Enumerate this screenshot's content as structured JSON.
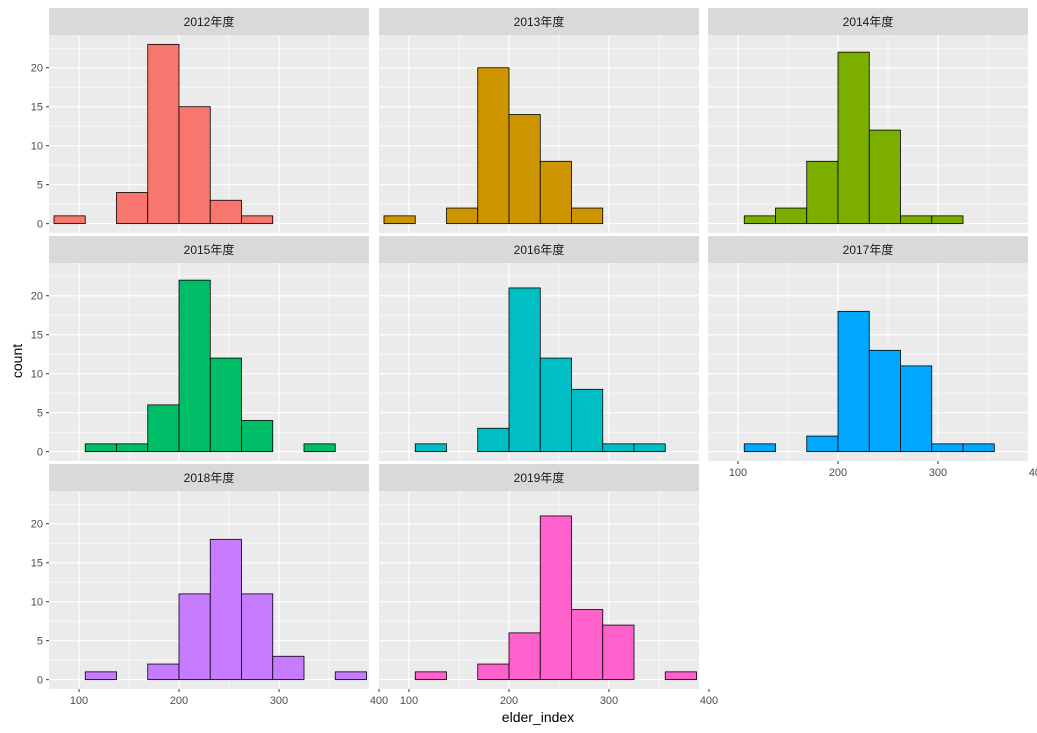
{
  "chart_data": {
    "type": "bar",
    "subtype": "faceted-histogram",
    "xlabel": "elder_index",
    "ylabel": "count",
    "xlim": [
      70,
      390
    ],
    "ylim": [
      -1.2,
      24.2
    ],
    "x_ticks": [
      100,
      200,
      300,
      400
    ],
    "y_ticks": [
      0,
      5,
      10,
      15,
      20
    ],
    "bin_edges": [
      75,
      106.25,
      137.5,
      168.75,
      200,
      231.25,
      262.5,
      293.75,
      325,
      356.25,
      387.5
    ],
    "grid": true,
    "legend": "none",
    "facets": [
      {
        "label": "2012年度",
        "color": "#F8766D",
        "counts": [
          1,
          0,
          4,
          23,
          15,
          3,
          1,
          0,
          0,
          0
        ]
      },
      {
        "label": "2013年度",
        "color": "#CD9600",
        "counts": [
          1,
          0,
          2,
          20,
          14,
          8,
          2,
          0,
          0,
          0
        ]
      },
      {
        "label": "2014年度",
        "color": "#7CAE00",
        "counts": [
          0,
          1,
          2,
          8,
          22,
          12,
          1,
          1,
          0,
          0
        ]
      },
      {
        "label": "2015年度",
        "color": "#00BE67",
        "counts": [
          0,
          1,
          1,
          6,
          22,
          12,
          4,
          0,
          1,
          0
        ]
      },
      {
        "label": "2016年度",
        "color": "#00BFC4",
        "counts": [
          0,
          1,
          0,
          3,
          21,
          12,
          8,
          1,
          1,
          0
        ]
      },
      {
        "label": "2017年度",
        "color": "#00A9FF",
        "counts": [
          0,
          1,
          0,
          2,
          18,
          13,
          11,
          1,
          1,
          0
        ]
      },
      {
        "label": "2018年度",
        "color": "#C77CFF",
        "counts": [
          0,
          1,
          0,
          2,
          11,
          18,
          11,
          3,
          0,
          1
        ]
      },
      {
        "label": "2019年度",
        "color": "#FF61CC",
        "counts": [
          0,
          1,
          0,
          2,
          6,
          21,
          9,
          7,
          0,
          1
        ]
      }
    ]
  },
  "style": {
    "panel_bg": "#EBEBEB",
    "strip_bg": "#D9D9D9",
    "grid_color": "#FFFFFF",
    "bar_outline": "#000000",
    "text_color": "#4D4D4D"
  }
}
